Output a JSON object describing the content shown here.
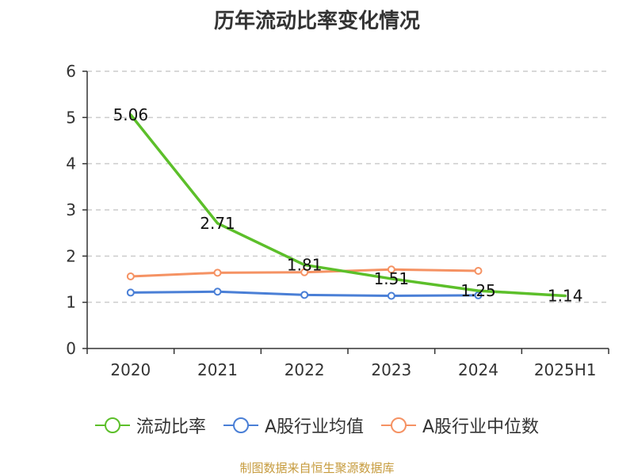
{
  "title": "历年流动比率变化情况",
  "source_note": "制图数据来自恒生聚源数据库",
  "legend": [
    {
      "label": "流动比率",
      "color": "#5cbf2a",
      "icon": "circle-line-icon"
    },
    {
      "label": "A股行业均值",
      "color": "#4a7fd6",
      "icon": "circle-line-icon"
    },
    {
      "label": "A股行业中位数",
      "color": "#f59263",
      "icon": "circle-line-icon"
    }
  ],
  "chart_data": {
    "type": "line",
    "title": "历年流动比率变化情况",
    "categories": [
      "2020",
      "2021",
      "2022",
      "2023",
      "2024",
      "2025H1"
    ],
    "ylim": [
      0,
      6
    ],
    "yticks": [
      0,
      1,
      2,
      3,
      4,
      5,
      6
    ],
    "grid": true,
    "legend_position": "bottom",
    "series": [
      {
        "name": "流动比率",
        "color": "#5cbf2a",
        "values": [
          5.06,
          2.71,
          1.81,
          1.51,
          1.25,
          1.14
        ],
        "labels": [
          "5.06",
          "2.71",
          "1.81",
          "1.51",
          "1.25",
          "1.14"
        ],
        "markers": false
      },
      {
        "name": "A股行业均值",
        "color": "#4a7fd6",
        "values": [
          1.21,
          1.23,
          1.16,
          1.14,
          1.15,
          null
        ],
        "markers": true
      },
      {
        "name": "A股行业中位数",
        "color": "#f59263",
        "values": [
          1.56,
          1.64,
          1.65,
          1.71,
          1.68,
          null
        ],
        "markers": true
      }
    ]
  }
}
